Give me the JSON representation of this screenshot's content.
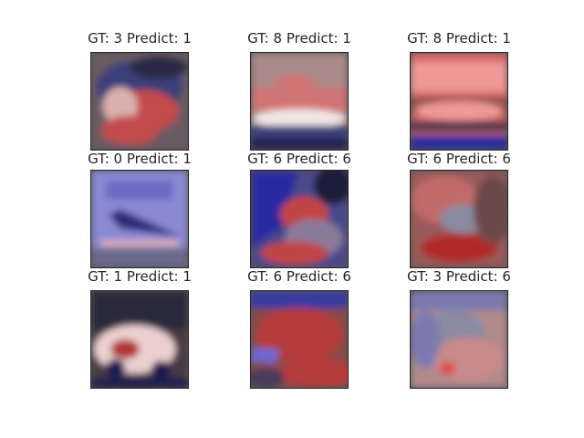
{
  "panels": [
    {
      "title": "GT: 3 Predict: 1",
      "ground_truth": 3,
      "prediction": 1,
      "palette": {
        "bg": "#6a5a64",
        "a": "#3b3f7a",
        "b": "#c24c4c",
        "c": "#d9b0ad",
        "d": "#2a2a45"
      }
    },
    {
      "title": "GT: 8 Predict: 1",
      "ground_truth": 8,
      "prediction": 1,
      "palette": {
        "bg": "#a88a8a",
        "a": "#d07474",
        "b": "#f2e6e6",
        "c": "#3b3f7a",
        "d": "#202050"
      }
    },
    {
      "title": "GT: 8 Predict: 1",
      "ground_truth": 8,
      "prediction": 1,
      "palette": {
        "bg": "#d86a6a",
        "a": "#f09898",
        "b": "#9a5252",
        "c": "#2b2fa0",
        "d": "#5a3a50"
      }
    },
    {
      "title": "GT: 0 Predict: 1",
      "ground_truth": 0,
      "prediction": 1,
      "palette": {
        "bg": "#8a8ad4",
        "a": "#6c6cc4",
        "b": "#2a2a7a",
        "c": "#e6b3b3",
        "d": "#6a6a8a"
      }
    },
    {
      "title": "GT: 6 Predict: 6",
      "ground_truth": 6,
      "prediction": 6,
      "palette": {
        "bg": "#4a4a8a",
        "a": "#2a2aa0",
        "b": "#c24545",
        "c": "#8a7a9a",
        "d": "#1a1a3a"
      }
    },
    {
      "title": "GT: 6 Predict: 6",
      "ground_truth": 6,
      "prediction": 6,
      "palette": {
        "bg": "#9a5a5a",
        "a": "#c06a6a",
        "b": "#b02a2a",
        "c": "#8a8aa0",
        "d": "#6a4a4a"
      }
    },
    {
      "title": "GT: 1 Predict: 1",
      "ground_truth": 1,
      "prediction": 1,
      "palette": {
        "bg": "#4a3a45",
        "a": "#ecd0d0",
        "b": "#b03535",
        "c": "#1a1a50",
        "d": "#2a2a3a"
      }
    },
    {
      "title": "GT: 6 Predict: 6",
      "ground_truth": 6,
      "prediction": 6,
      "palette": {
        "bg": "#8a4a4a",
        "a": "#b63a3a",
        "b": "#6a6ad0",
        "c": "#4a3a5a",
        "d": "#3a3aa0"
      }
    },
    {
      "title": "GT: 3 Predict: 6",
      "ground_truth": 3,
      "prediction": 6,
      "palette": {
        "bg": "#b08a8a",
        "a": "#7a7ab0",
        "b": "#c88a8a",
        "c": "#e04a4a",
        "d": "#8a8aa0"
      }
    }
  ]
}
